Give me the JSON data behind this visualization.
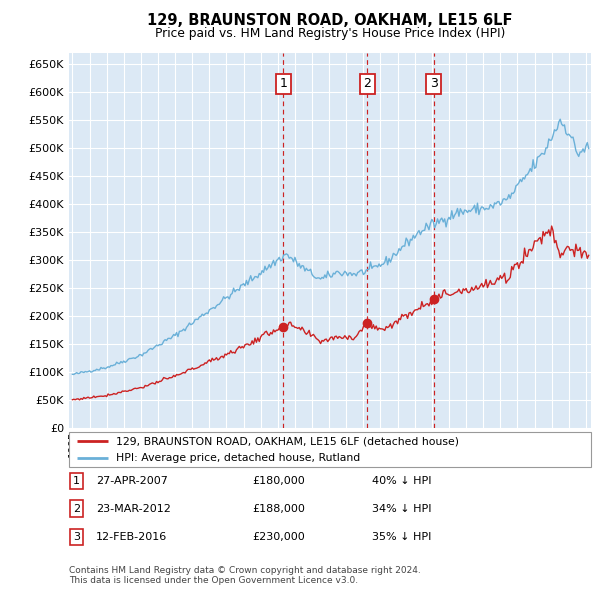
{
  "title": "129, BRAUNSTON ROAD, OAKHAM, LE15 6LF",
  "subtitle": "Price paid vs. HM Land Registry's House Price Index (HPI)",
  "sale_labels": [
    "1",
    "2",
    "3"
  ],
  "sale_years": [
    2007.32,
    2012.22,
    2016.12
  ],
  "sale_prices": [
    180000,
    188000,
    230000
  ],
  "legend_sale": "129, BRAUNSTON ROAD, OAKHAM, LE15 6LF (detached house)",
  "legend_hpi": "HPI: Average price, detached house, Rutland",
  "table_entries": [
    {
      "num": "1",
      "date": "27-APR-2007",
      "price": "£180,000",
      "pct": "40% ↓ HPI"
    },
    {
      "num": "2",
      "date": "23-MAR-2012",
      "price": "£188,000",
      "pct": "34% ↓ HPI"
    },
    {
      "num": "3",
      "date": "12-FEB-2016",
      "price": "£230,000",
      "pct": "35% ↓ HPI"
    }
  ],
  "footer": "Contains HM Land Registry data © Crown copyright and database right 2024.\nThis data is licensed under the Open Government Licence v3.0.",
  "hpi_color": "#6ab0d8",
  "sale_color": "#cc2222",
  "vline_color": "#cc2222",
  "bg_plot": "#dce9f5",
  "grid_color": "#ffffff",
  "ylim": [
    0,
    670000
  ],
  "yticks": [
    0,
    50000,
    100000,
    150000,
    200000,
    250000,
    300000,
    350000,
    400000,
    450000,
    500000,
    550000,
    600000,
    650000
  ],
  "xlim_start": 1994.8,
  "xlim_end": 2025.3
}
